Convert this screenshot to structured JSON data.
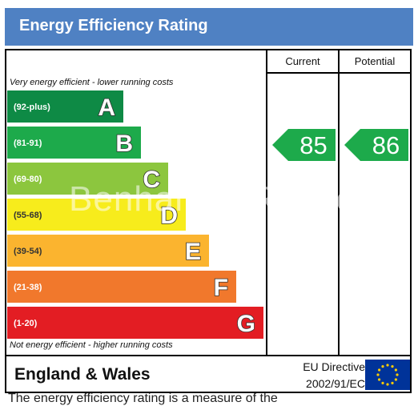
{
  "title": "Energy Efficiency Rating",
  "columns": {
    "current": "Current",
    "potential": "Potential"
  },
  "top_note": "Very energy efficient - lower running costs",
  "bottom_note": "Not energy efficient - higher running costs",
  "region": "England & Wales",
  "directive_line1": "EU Directive",
  "directive_line2": "2002/91/EC",
  "watermark": "Benham & Reeves",
  "bottom_text": "The energy efficiency rating is a measure of the",
  "colors": {
    "title_bar": "#4f81c3",
    "A": "#0e8a45",
    "B": "#1daa4b",
    "C": "#8cc63e",
    "D": "#f7ec1c",
    "E": "#fbb42f",
    "F": "#f1782c",
    "G": "#e31d23",
    "eu_blue": "#003399",
    "eu_star": "#ffcc00"
  },
  "chart_data": {
    "type": "bar",
    "title": "Energy Efficiency Rating",
    "bands": [
      {
        "range": "(92-plus)",
        "letter": "A",
        "min": 92,
        "max": 100
      },
      {
        "range": "(81-91)",
        "letter": "B",
        "min": 81,
        "max": 91
      },
      {
        "range": "(69-80)",
        "letter": "C",
        "min": 69,
        "max": 80
      },
      {
        "range": "(55-68)",
        "letter": "D",
        "min": 55,
        "max": 68
      },
      {
        "range": "(39-54)",
        "letter": "E",
        "min": 39,
        "max": 54
      },
      {
        "range": "(21-38)",
        "letter": "F",
        "min": 21,
        "max": 38
      },
      {
        "range": "(1-20)",
        "letter": "G",
        "min": 1,
        "max": 20
      }
    ],
    "current": {
      "value": 85,
      "band": "B"
    },
    "potential": {
      "value": 86,
      "band": "B"
    }
  }
}
